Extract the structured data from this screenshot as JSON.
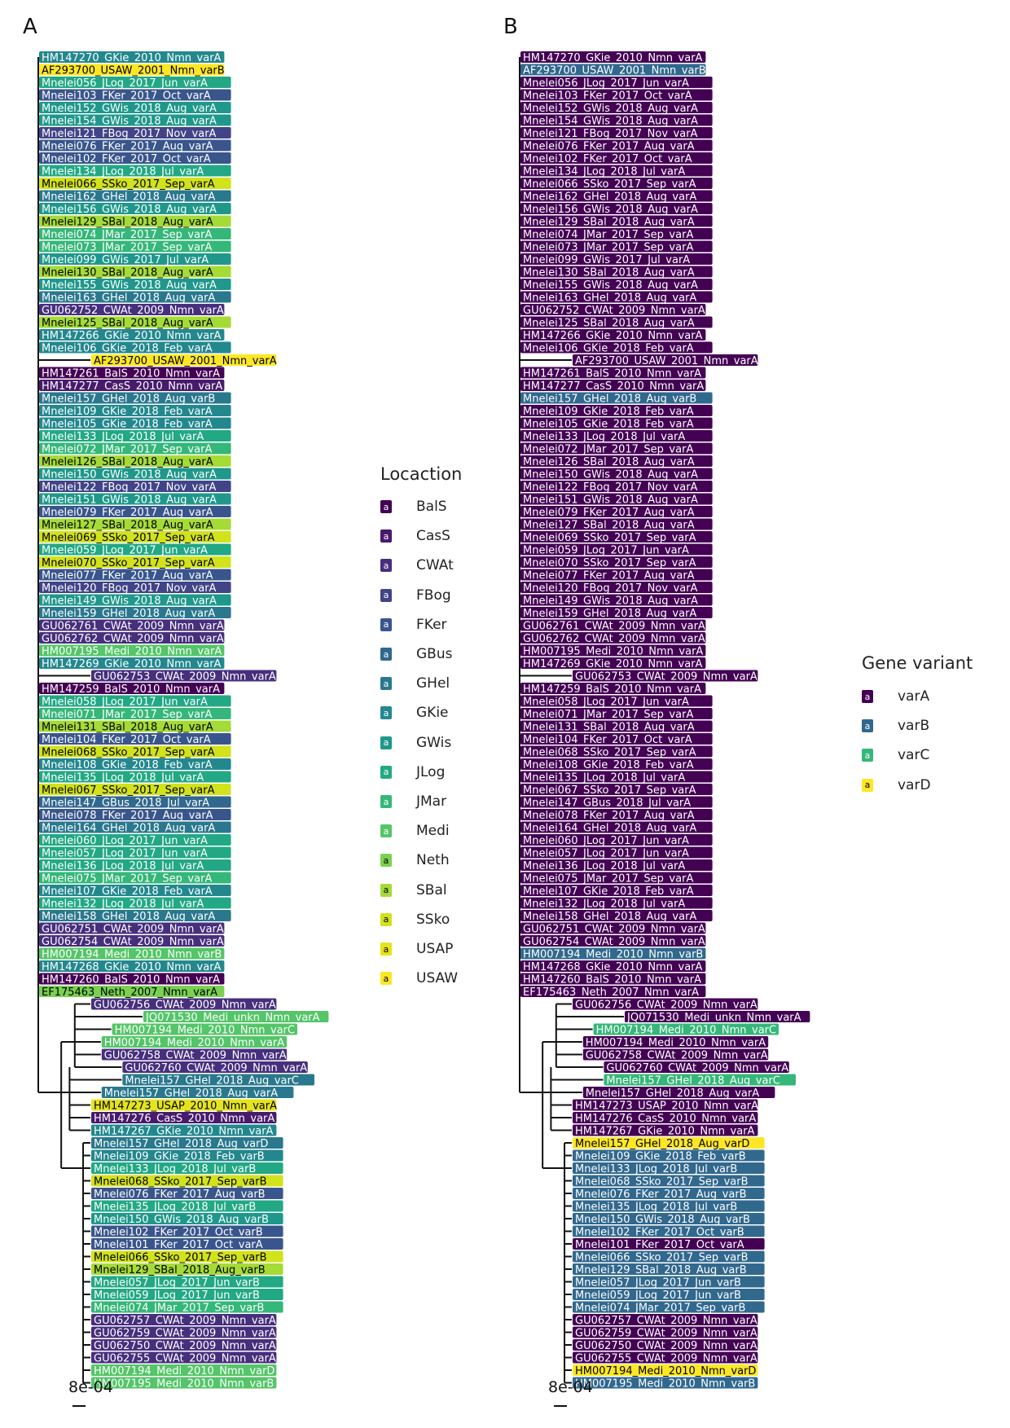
{
  "panels": {
    "a": "A",
    "b": "B"
  },
  "scale_label": "8e-04",
  "legend_location": {
    "title": "Locaction",
    "items": [
      {
        "label": "BalS",
        "color": "#440154"
      },
      {
        "label": "CasS",
        "color": "#481a6c"
      },
      {
        "label": "CWAt",
        "color": "#472f7d"
      },
      {
        "label": "FBog",
        "color": "#414487"
      },
      {
        "label": "FKer",
        "color": "#39568c"
      },
      {
        "label": "GBus",
        "color": "#31688e"
      },
      {
        "label": "GHel",
        "color": "#2a788e"
      },
      {
        "label": "GKie",
        "color": "#23888e"
      },
      {
        "label": "GWis",
        "color": "#1f988b"
      },
      {
        "label": "JLog",
        "color": "#22a884"
      },
      {
        "label": "JMar",
        "color": "#35b779"
      },
      {
        "label": "Medi",
        "color": "#54c568"
      },
      {
        "label": "Neth",
        "color": "#7ad151"
      },
      {
        "label": "SBal",
        "color": "#a5db36"
      },
      {
        "label": "SSko",
        "color": "#d2e21b"
      },
      {
        "label": "USAP",
        "color": "#e5e419"
      },
      {
        "label": "USAW",
        "color": "#fde725"
      }
    ]
  },
  "legend_variant": {
    "title": "Gene variant",
    "items": [
      {
        "label": "varA",
        "color": "#440154"
      },
      {
        "label": "varB",
        "color": "#31688e"
      },
      {
        "label": "varC",
        "color": "#35b779"
      },
      {
        "label": "varD",
        "color": "#fde725"
      }
    ]
  },
  "legend_key_glyph": "a",
  "tips": [
    {
      "label": "HM147270_GKie_2010_Nmn_varA",
      "loc": "GKie",
      "var": "varA",
      "depth": 0
    },
    {
      "label": "AF293700_USAW_2001_Nmn_varB",
      "loc": "USAW",
      "var": "varB",
      "depth": 0
    },
    {
      "label": "Mnelei056_JLog_2017_Jun_varA",
      "loc": "JLog",
      "var": "varA",
      "depth": 0
    },
    {
      "label": "Mnelei103_FKer_2017_Oct_varA",
      "loc": "FKer",
      "var": "varA",
      "depth": 0
    },
    {
      "label": "Mnelei152_GWis_2018_Aug_varA",
      "loc": "GWis",
      "var": "varA",
      "depth": 0
    },
    {
      "label": "Mnelei154_GWis_2018_Aug_varA",
      "loc": "GWis",
      "var": "varA",
      "depth": 0
    },
    {
      "label": "Mnelei121_FBog_2017_Nov_varA",
      "loc": "FBog",
      "var": "varA",
      "depth": 0
    },
    {
      "label": "Mnelei076_FKer_2017_Aug_varA",
      "loc": "FKer",
      "var": "varA",
      "depth": 0
    },
    {
      "label": "Mnelei102_FKer_2017_Oct_varA",
      "loc": "FKer",
      "var": "varA",
      "depth": 0
    },
    {
      "label": "Mnelei134_JLog_2018_Jul_varA",
      "loc": "JLog",
      "var": "varA",
      "depth": 0
    },
    {
      "label": "Mnelei066_SSko_2017_Sep_varA",
      "loc": "SSko",
      "var": "varA",
      "depth": 0
    },
    {
      "label": "Mnelei162_GHel_2018_Aug_varA",
      "loc": "GHel",
      "var": "varA",
      "depth": 0
    },
    {
      "label": "Mnelei156_GWis_2018_Aug_varA",
      "loc": "GWis",
      "var": "varA",
      "depth": 0
    },
    {
      "label": "Mnelei129_SBal_2018_Aug_varA",
      "loc": "SBal",
      "var": "varA",
      "depth": 0
    },
    {
      "label": "Mnelei074_JMar_2017_Sep_varA",
      "loc": "JMar",
      "var": "varA",
      "depth": 0
    },
    {
      "label": "Mnelei073_JMar_2017_Sep_varA",
      "loc": "JMar",
      "var": "varA",
      "depth": 0
    },
    {
      "label": "Mnelei099_GWis_2017_Jul_varA",
      "loc": "GWis",
      "var": "varA",
      "depth": 0
    },
    {
      "label": "Mnelei130_SBal_2018_Aug_varA",
      "loc": "SBal",
      "var": "varA",
      "depth": 0
    },
    {
      "label": "Mnelei155_GWis_2018_Aug_varA",
      "loc": "GWis",
      "var": "varA",
      "depth": 0
    },
    {
      "label": "Mnelei163_GHel_2018_Aug_varA",
      "loc": "GHel",
      "var": "varA",
      "depth": 0
    },
    {
      "label": "GU062752_CWAt_2009_Nmn_varA",
      "loc": "CWAt",
      "var": "varA",
      "depth": 0
    },
    {
      "label": "Mnelei125_SBal_2018_Aug_varA",
      "loc": "SBal",
      "var": "varA",
      "depth": 0
    },
    {
      "label": "HM147266_GKie_2010_Nmn_varA",
      "loc": "GKie",
      "var": "varA",
      "depth": 0
    },
    {
      "label": "Mnelei106_GKie_2018_Feb_varA",
      "loc": "GKie",
      "var": "varA",
      "depth": 0
    },
    {
      "label": "AF293700_USAW_2001_Nmn_varA",
      "loc": "USAW",
      "var": "varA",
      "depth": 5
    },
    {
      "label": "HM147261_BalS_2010_Nmn_varA",
      "loc": "BalS",
      "var": "varA",
      "depth": 0
    },
    {
      "label": "HM147277_CasS_2010_Nmn_varA",
      "loc": "CasS",
      "var": "varA",
      "depth": 0
    },
    {
      "label": "Mnelei157_GHel_2018_Aug_varB",
      "loc": "GHel",
      "var": "varB",
      "depth": 0
    },
    {
      "label": "Mnelei109_GKie_2018_Feb_varA",
      "loc": "GKie",
      "var": "varA",
      "depth": 0
    },
    {
      "label": "Mnelei105_GKie_2018_Feb_varA",
      "loc": "GKie",
      "var": "varA",
      "depth": 0
    },
    {
      "label": "Mnelei133_JLog_2018_Jul_varA",
      "loc": "JLog",
      "var": "varA",
      "depth": 0
    },
    {
      "label": "Mnelei072_JMar_2017_Sep_varA",
      "loc": "JMar",
      "var": "varA",
      "depth": 0
    },
    {
      "label": "Mnelei126_SBal_2018_Aug_varA",
      "loc": "SBal",
      "var": "varA",
      "depth": 0
    },
    {
      "label": "Mnelei150_GWis_2018_Aug_varA",
      "loc": "GWis",
      "var": "varA",
      "depth": 0
    },
    {
      "label": "Mnelei122_FBog_2017_Nov_varA",
      "loc": "FBog",
      "var": "varA",
      "depth": 0
    },
    {
      "label": "Mnelei151_GWis_2018_Aug_varA",
      "loc": "GWis",
      "var": "varA",
      "depth": 0
    },
    {
      "label": "Mnelei079_FKer_2017_Aug_varA",
      "loc": "FKer",
      "var": "varA",
      "depth": 0
    },
    {
      "label": "Mnelei127_SBal_2018_Aug_varA",
      "loc": "SBal",
      "var": "varA",
      "depth": 0
    },
    {
      "label": "Mnelei069_SSko_2017_Sep_varA",
      "loc": "SSko",
      "var": "varA",
      "depth": 0
    },
    {
      "label": "Mnelei059_JLog_2017_Jun_varA",
      "loc": "JLog",
      "var": "varA",
      "depth": 0
    },
    {
      "label": "Mnelei070_SSko_2017_Sep_varA",
      "loc": "SSko",
      "var": "varA",
      "depth": 0
    },
    {
      "label": "Mnelei077_FKer_2017_Aug_varA",
      "loc": "FKer",
      "var": "varA",
      "depth": 0
    },
    {
      "label": "Mnelei120_FBog_2017_Nov_varA",
      "loc": "FBog",
      "var": "varA",
      "depth": 0
    },
    {
      "label": "Mnelei149_GWis_2018_Aug_varA",
      "loc": "GWis",
      "var": "varA",
      "depth": 0
    },
    {
      "label": "Mnelei159_GHel_2018_Aug_varA",
      "loc": "GHel",
      "var": "varA",
      "depth": 0
    },
    {
      "label": "GU062761_CWAt_2009_Nmn_varA",
      "loc": "CWAt",
      "var": "varA",
      "depth": 0
    },
    {
      "label": "GU062762_CWAt_2009_Nmn_varA",
      "loc": "CWAt",
      "var": "varA",
      "depth": 0
    },
    {
      "label": "HM007195_Medi_2010_Nmn_varA",
      "loc": "Medi",
      "var": "varA",
      "depth": 0
    },
    {
      "label": "HM147269_GKie_2010_Nmn_varA",
      "loc": "GKie",
      "var": "varA",
      "depth": 0
    },
    {
      "label": "GU062753_CWAt_2009_Nmn_varA",
      "loc": "CWAt",
      "var": "varA",
      "depth": 5
    },
    {
      "label": "HM147259_BalS_2010_Nmn_varA",
      "loc": "BalS",
      "var": "varA",
      "depth": 0
    },
    {
      "label": "Mnelei058_JLog_2017_Jun_varA",
      "loc": "JLog",
      "var": "varA",
      "depth": 0
    },
    {
      "label": "Mnelei071_JMar_2017_Sep_varA",
      "loc": "JMar",
      "var": "varA",
      "depth": 0
    },
    {
      "label": "Mnelei131_SBal_2018_Aug_varA",
      "loc": "SBal",
      "var": "varA",
      "depth": 0
    },
    {
      "label": "Mnelei104_FKer_2017_Oct_varA",
      "loc": "FKer",
      "var": "varA",
      "depth": 0
    },
    {
      "label": "Mnelei068_SSko_2017_Sep_varA",
      "loc": "SSko",
      "var": "varA",
      "depth": 0
    },
    {
      "label": "Mnelei108_GKie_2018_Feb_varA",
      "loc": "GKie",
      "var": "varA",
      "depth": 0
    },
    {
      "label": "Mnelei135_JLog_2018_Jul_varA",
      "loc": "JLog",
      "var": "varA",
      "depth": 0
    },
    {
      "label": "Mnelei067_SSko_2017_Sep_varA",
      "loc": "SSko",
      "var": "varA",
      "depth": 0
    },
    {
      "label": "Mnelei147_GBus_2018_Jul_varA",
      "loc": "GBus",
      "var": "varA",
      "depth": 0
    },
    {
      "label": "Mnelei078_FKer_2017_Aug_varA",
      "loc": "FKer",
      "var": "varA",
      "depth": 0
    },
    {
      "label": "Mnelei164_GHel_2018_Aug_varA",
      "loc": "GHel",
      "var": "varA",
      "depth": 0
    },
    {
      "label": "Mnelei060_JLog_2017_Jun_varA",
      "loc": "JLog",
      "var": "varA",
      "depth": 0
    },
    {
      "label": "Mnelei057_JLog_2017_Jun_varA",
      "loc": "JLog",
      "var": "varA",
      "depth": 0
    },
    {
      "label": "Mnelei136_JLog_2018_Jul_varA",
      "loc": "JLog",
      "var": "varA",
      "depth": 0
    },
    {
      "label": "Mnelei075_JMar_2017_Sep_varA",
      "loc": "JMar",
      "var": "varA",
      "depth": 0
    },
    {
      "label": "Mnelei107_GKie_2018_Feb_varA",
      "loc": "GKie",
      "var": "varA",
      "depth": 0
    },
    {
      "label": "Mnelei132_JLog_2018_Jul_varA",
      "loc": "JLog",
      "var": "varA",
      "depth": 0
    },
    {
      "label": "Mnelei158_GHel_2018_Aug_varA",
      "loc": "GHel",
      "var": "varA",
      "depth": 0
    },
    {
      "label": "GU062751_CWAt_2009_Nmn_varA",
      "loc": "CWAt",
      "var": "varA",
      "depth": 0
    },
    {
      "label": "GU062754_CWAt_2009_Nmn_varA",
      "loc": "CWAt",
      "var": "varA",
      "depth": 0
    },
    {
      "label": "HM007194_Medi_2010_Nmn_varB",
      "loc": "Medi",
      "var": "varB",
      "depth": 0
    },
    {
      "label": "HM147268_GKie_2010_Nmn_varA",
      "loc": "GKie",
      "var": "varA",
      "depth": 0
    },
    {
      "label": "HM147260_BalS_2010_Nmn_varA",
      "loc": "BalS",
      "var": "varA",
      "depth": 0
    },
    {
      "label": "EF175463_Neth_2007_Nmn_varA",
      "loc": "Neth",
      "var": "varA",
      "depth": 0
    },
    {
      "label": "GU062756_CWAt_2009_Nmn_varA",
      "loc": "CWAt",
      "var": "varA",
      "depth": 5
    },
    {
      "label": "JQ071530_Medi_unkn_Nmn_varA",
      "loc": "Medi",
      "var": "varA",
      "depth": 10
    },
    {
      "label": "HM007194_Medi_2010_Nmn_varC",
      "loc": "Medi",
      "var": "varC",
      "depth": 7
    },
    {
      "label": "HM007194_Medi_2010_Nmn_varA",
      "loc": "Medi",
      "var": "varA",
      "depth": 6
    },
    {
      "label": "GU062758_CWAt_2009_Nmn_varA",
      "loc": "CWAt",
      "var": "varA",
      "depth": 6
    },
    {
      "label": "GU062760_CWAt_2009_Nmn_varA",
      "loc": "CWAt",
      "var": "varA",
      "depth": 8
    },
    {
      "label": "Mnelei157_GHel_2018_Aug_varC",
      "loc": "GHel",
      "var": "varC",
      "depth": 8
    },
    {
      "label": "Mnelei157_GHel_2018_Aug_varA",
      "loc": "GHel",
      "var": "varA",
      "depth": 6
    },
    {
      "label": "HM147273_USAP_2010_Nmn_varA",
      "loc": "USAP",
      "var": "varA",
      "depth": 5
    },
    {
      "label": "HM147276_CasS_2010_Nmn_varA",
      "loc": "CasS",
      "var": "varA",
      "depth": 5
    },
    {
      "label": "HM147267_GKie_2010_Nmn_varA",
      "loc": "GKie",
      "var": "varA",
      "depth": 5
    },
    {
      "label": "Mnelei157_GHel_2018_Aug_varD",
      "loc": "GHel",
      "var": "varD",
      "depth": 5
    },
    {
      "label": "Mnelei109_GKie_2018_Feb_varB",
      "loc": "GKie",
      "var": "varB",
      "depth": 5
    },
    {
      "label": "Mnelei133_JLog_2018_Jul_varB",
      "loc": "JLog",
      "var": "varB",
      "depth": 5
    },
    {
      "label": "Mnelei068_SSko_2017_Sep_varB",
      "loc": "SSko",
      "var": "varB",
      "depth": 5
    },
    {
      "label": "Mnelei076_FKer_2017_Aug_varB",
      "loc": "FKer",
      "var": "varB",
      "depth": 5
    },
    {
      "label": "Mnelei135_JLog_2018_Jul_varB",
      "loc": "JLog",
      "var": "varB",
      "depth": 5
    },
    {
      "label": "Mnelei150_GWis_2018_Aug_varB",
      "loc": "GWis",
      "var": "varB",
      "depth": 5
    },
    {
      "label": "Mnelei102_FKer_2017_Oct_varB",
      "loc": "FKer",
      "var": "varB",
      "depth": 5
    },
    {
      "label": "Mnelei101_FKer_2017_Oct_varA",
      "loc": "FKer",
      "var": "varA",
      "depth": 5
    },
    {
      "label": "Mnelei066_SSko_2017_Sep_varB",
      "loc": "SSko",
      "var": "varB",
      "depth": 5
    },
    {
      "label": "Mnelei129_SBal_2018_Aug_varB",
      "loc": "SBal",
      "var": "varB",
      "depth": 5
    },
    {
      "label": "Mnelei057_JLog_2017_Jun_varB",
      "loc": "JLog",
      "var": "varB",
      "depth": 5
    },
    {
      "label": "Mnelei059_JLog_2017_Jun_varB",
      "loc": "JLog",
      "var": "varB",
      "depth": 5
    },
    {
      "label": "Mnelei074_JMar_2017_Sep_varB",
      "loc": "JMar",
      "var": "varB",
      "depth": 5
    },
    {
      "label": "GU062757_CWAt_2009_Nmn_varA",
      "loc": "CWAt",
      "var": "varA",
      "depth": 5
    },
    {
      "label": "GU062759_CWAt_2009_Nmn_varA",
      "loc": "CWAt",
      "var": "varA",
      "depth": 5
    },
    {
      "label": "GU062750_CWAt_2009_Nmn_varA",
      "loc": "CWAt",
      "var": "varA",
      "depth": 5
    },
    {
      "label": "GU062755_CWAt_2009_Nmn_varA",
      "loc": "CWAt",
      "var": "varA",
      "depth": 5
    },
    {
      "label": "HM007194_Medi_2010_Nmn_varD",
      "loc": "Medi",
      "var": "varD",
      "depth": 5
    },
    {
      "label": "HM007195_Medi_2010_Nmn_varB",
      "loc": "Medi",
      "var": "varB",
      "depth": 5
    }
  ]
}
